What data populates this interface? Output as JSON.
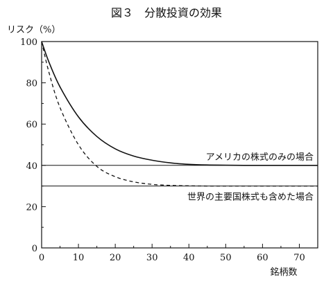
{
  "chart_data": {
    "type": "line",
    "title": "図３　分散投資の効果",
    "ylabel": "リスク（%）",
    "xlabel": "銘柄数",
    "xlim": [
      0,
      75
    ],
    "ylim": [
      0,
      100
    ],
    "xticks": [
      0,
      10,
      20,
      30,
      40,
      50,
      60,
      70
    ],
    "yticks": [
      0,
      20,
      40,
      60,
      80,
      100
    ],
    "grid": false,
    "legend": "none",
    "series": [
      {
        "style": "solid",
        "x": [
          0,
          2,
          5,
          10,
          15,
          20,
          25,
          30,
          35,
          40,
          45,
          50,
          55,
          60,
          65,
          70,
          75
        ],
        "y": [
          100,
          90,
          78,
          63.5,
          54,
          48,
          44.5,
          42.5,
          41.2,
          40.5,
          40.2,
          40.1,
          40,
          40,
          40,
          40,
          40
        ]
      },
      {
        "style": "dashed",
        "x": [
          0,
          2,
          5,
          10,
          15,
          20,
          25,
          30,
          35,
          40,
          45,
          50,
          55,
          60,
          65,
          70,
          75
        ],
        "y": [
          100,
          85,
          68,
          50,
          39.5,
          34.5,
          32,
          30.8,
          30.3,
          30.1,
          30,
          30,
          30,
          30,
          30,
          30,
          30
        ]
      }
    ],
    "reference_lines": [
      {
        "y": 40,
        "label": "アメリカの株式のみの場合",
        "label_position": "above"
      },
      {
        "y": 30,
        "label": "世界の主要国株式も含めた場合",
        "label_position": "below"
      }
    ]
  }
}
